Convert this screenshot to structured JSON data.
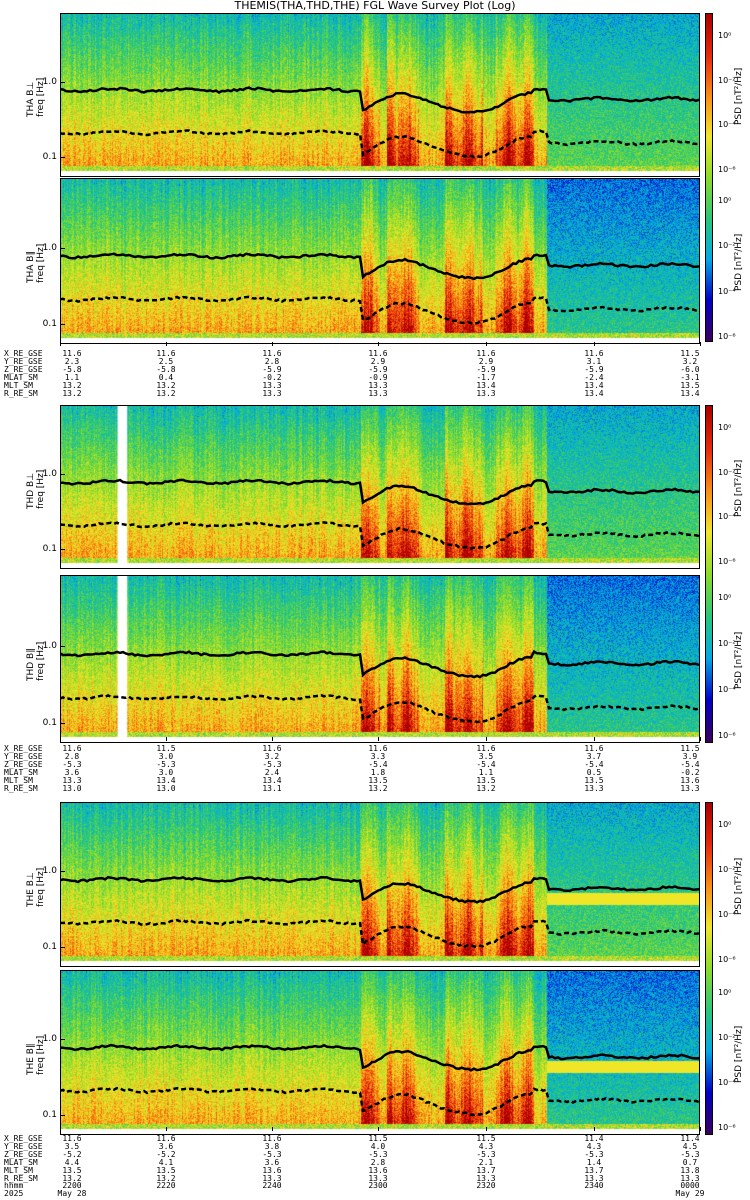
{
  "title": "THEMIS(THA,THD,THE) FGL Wave Survey Plot (Log)",
  "colors": {
    "bg": "#ffffff",
    "axis": "#000000",
    "fce_line": "#000000"
  },
  "freq_axis": {
    "scale": "log",
    "tick_labels": [
      "1.0",
      "0.1"
    ],
    "ylabel": "freq [Hz]"
  },
  "colorbar": {
    "label": "PSD [nT²/Hz]",
    "tick_labels": [
      "10⁰",
      "10⁻²",
      "10⁻⁴",
      "10⁻⁶"
    ],
    "scale": "log",
    "colormap": "rainbow"
  },
  "panels": [
    {
      "id": "tha-bperp",
      "probe_label": "THA B⊥",
      "data_gap_start": 0.76
    },
    {
      "id": "tha-bpar",
      "probe_label": "THA B∥",
      "data_gap_start": 0.76
    },
    {
      "id": "thd-bperp",
      "probe_label": "THD B⊥",
      "data_gap_start": 0.76,
      "gap_col": [
        0.09,
        0.105
      ]
    },
    {
      "id": "thd-bpar",
      "probe_label": "THD B∥",
      "data_gap_start": 0.76,
      "gap_col": [
        0.09,
        0.105
      ]
    },
    {
      "id": "the-bperp",
      "probe_label": "THE B⊥",
      "data_gap_start": 0.76
    },
    {
      "id": "the-bpar",
      "probe_label": "THE B∥",
      "data_gap_start": 0.76
    }
  ],
  "ephemeris": [
    {
      "labels": [
        "X_RE_GSE",
        "Y_RE_GSE",
        "Z_RE_GSE",
        "MLAT_SM",
        "MLT_SM",
        "R_RE_SM"
      ],
      "columns": [
        [
          "11.6",
          "2.3",
          "-5.8",
          "1.1",
          "13.2",
          "13.2"
        ],
        [
          "11.6",
          "2.5",
          "-5.8",
          "0.4",
          "13.2",
          "13.2"
        ],
        [
          "11.6",
          "2.8",
          "-5.9",
          "-0.2",
          "13.3",
          "13.3"
        ],
        [
          "11.6",
          "2.9",
          "-5.9",
          "-0.9",
          "13.3",
          "13.3"
        ],
        [
          "11.6",
          "2.9",
          "-5.9",
          "-1.7",
          "13.4",
          "13.3"
        ],
        [
          "11.6",
          "3.1",
          "-5.9",
          "-2.4",
          "13.4",
          "13.4"
        ],
        [
          "11.5",
          "3.2",
          "-6.0",
          "-3.1",
          "13.5",
          "13.4"
        ]
      ]
    },
    {
      "labels": [
        "X_RE_GSE",
        "Y_RE_GSE",
        "Z_RE_GSE",
        "MLAT_SM",
        "MLT_SM",
        "R_RE_SM"
      ],
      "columns": [
        [
          "11.6",
          "2.8",
          "-5.3",
          "3.6",
          "13.3",
          "13.0"
        ],
        [
          "11.5",
          "3.0",
          "-5.3",
          "3.0",
          "13.4",
          "13.0"
        ],
        [
          "11.6",
          "3.2",
          "-5.3",
          "2.4",
          "13.4",
          "13.1"
        ],
        [
          "11.6",
          "3.3",
          "-5.4",
          "1.8",
          "13.5",
          "13.2"
        ],
        [
          "11.6",
          "3.5",
          "-5.4",
          "1.1",
          "13.5",
          "13.2"
        ],
        [
          "11.6",
          "3.7",
          "-5.4",
          "0.5",
          "13.5",
          "13.3"
        ],
        [
          "11.5",
          "3.9",
          "-5.4",
          "-0.2",
          "13.6",
          "13.3"
        ]
      ]
    },
    {
      "labels": [
        "X_RE_GSE",
        "Y_RE_GSE",
        "Z_RE_GSE",
        "MLAT_SM",
        "MLT_SM",
        "R_RE_SM",
        "hhmm",
        "2025"
      ],
      "columns": [
        [
          "11.6",
          "3.5",
          "-5.2",
          "4.4",
          "13.5",
          "13.2",
          "2200",
          "May 28"
        ],
        [
          "11.6",
          "3.6",
          "-5.2",
          "4.1",
          "13.5",
          "13.2",
          "2220",
          ""
        ],
        [
          "11.6",
          "3.8",
          "-5.3",
          "3.6",
          "13.6",
          "13.3",
          "2240",
          ""
        ],
        [
          "11.5",
          "4.0",
          "-5.3",
          "2.8",
          "13.6",
          "13.3",
          "2300",
          ""
        ],
        [
          "11.5",
          "4.3",
          "-5.3",
          "2.1",
          "13.7",
          "13.3",
          "2320",
          ""
        ],
        [
          "11.4",
          "4.3",
          "-5.3",
          "1.4",
          "13.7",
          "13.3",
          "2340",
          ""
        ],
        [
          "11.4",
          "4.5",
          "-5.3",
          "0.7",
          "13.8",
          "13.3",
          "0000",
          "May 29"
        ]
      ]
    }
  ],
  "chart_data": {
    "type": "heatmap",
    "title": "THEMIS(THA,THD,THE) FGL Wave Survey Plot (Log)",
    "ylabel": "freq [Hz]",
    "yscale": "log",
    "colorbar_label": "PSD [nT²/Hz]",
    "x_tick_labels": [
      "2200",
      "2220",
      "2240",
      "2300",
      "2320",
      "2340",
      "0000"
    ],
    "x_dates": [
      "May 28",
      "May 29"
    ],
    "series": [
      {
        "name": "THA B⊥"
      },
      {
        "name": "THA B∥"
      },
      {
        "name": "THD B⊥"
      },
      {
        "name": "THD B∥"
      },
      {
        "name": "THE B⊥"
      },
      {
        "name": "THE B∥"
      }
    ]
  }
}
